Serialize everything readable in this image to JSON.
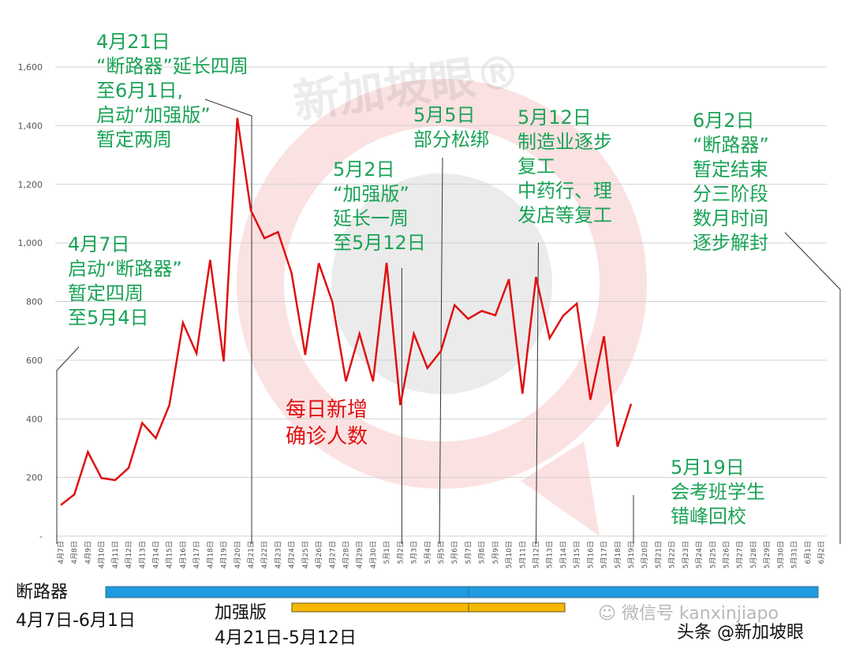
{
  "chart_data": {
    "type": "line",
    "title": "",
    "xlabel": "",
    "ylabel": "",
    "ylim": [
      0,
      1600
    ],
    "yticks": [
      0,
      200,
      400,
      600,
      800,
      1000,
      1200,
      1400,
      1600
    ],
    "ytick_labels": [
      "-",
      "200",
      "400",
      "600",
      "800",
      "1,000",
      "1,200",
      "1,400",
      "1,600"
    ],
    "grid": true,
    "categories": [
      "4月7日",
      "4月8日",
      "4月9日",
      "4月10日",
      "4月11日",
      "4月12日",
      "4月13日",
      "4月14日",
      "4月15日",
      "4月16日",
      "4月17日",
      "4月18日",
      "4月19日",
      "4月20日",
      "4月21日",
      "4月22日",
      "4月23日",
      "4月24日",
      "4月25日",
      "4月26日",
      "4月27日",
      "4月28日",
      "4月29日",
      "4月30日",
      "5月1日",
      "5月2日",
      "5月3日",
      "5月4日",
      "5月5日",
      "5月6日",
      "5月7日",
      "5月8日",
      "5月9日",
      "5月10日",
      "5月11日",
      "5月12日",
      "5月13日",
      "5月14日",
      "5月15日",
      "5月16日",
      "5月17日",
      "5月18日",
      "5月19日",
      "5月20日",
      "5月21日",
      "5月22日",
      "5月23日",
      "5月24日",
      "5月25日",
      "5月26日",
      "5月27日",
      "5月28日",
      "5月29日",
      "5月30日",
      "5月31日",
      "6月1日",
      "6月2日"
    ],
    "series": [
      {
        "name": "每日新增确诊人数",
        "color": "#e01010",
        "values": [
          106,
          142,
          287,
          198,
          191,
          233,
          386,
          334,
          447,
          728,
          623,
          942,
          596,
          1426,
          1111,
          1016,
          1037,
          897,
          618,
          931,
          799,
          528,
          690,
          528,
          932,
          447,
          690,
          573,
          632,
          788,
          741,
          768,
          753,
          876,
          486,
          884,
          675,
          752,
          793,
          465,
          682,
          305,
          451
        ]
      }
    ],
    "series_label": "每日新增\n确诊人数",
    "annotations": [
      {
        "date": "4月7日",
        "text": "4月7日\n启动“断路器”\n暂定四周\n至5月4日"
      },
      {
        "date": "4月21日",
        "text": "4月21日\n“断路器”延长四周\n至6月1日,\n启动“加强版”\n暂定两周"
      },
      {
        "date": "5月2日",
        "text": "5月2日\n“加强版”\n延长一周\n至5月12日"
      },
      {
        "date": "5月5日",
        "text": "5月5日\n部分松绑"
      },
      {
        "date": "5月12日",
        "text": "5月12日\n制造业逐步\n复工\n中药行、理\n发店等复工"
      },
      {
        "date": "5月19日",
        "text": "5月19日\n会考班学生\n错峰回校"
      },
      {
        "date": "6月2日",
        "text": "6月2日\n“断路器”\n暂定结束\n分三阶段\n数月时间\n逐步解封"
      }
    ],
    "legend_bars": [
      {
        "name": "断路器",
        "range": "4月7日-6月1日",
        "color": "#1e9be0"
      },
      {
        "name": "加强版",
        "range": "4月21日-5月12日",
        "color": "#f5b800"
      }
    ]
  },
  "labels": {
    "series_label": "每日新增\n确诊人数",
    "ann_0407": "4月7日\n启动“断路器”\n暂定四周\n至5月4日",
    "ann_0421": "4月21日\n“断路器”延长四周\n至6月1日,\n启动“加强版”\n暂定两周",
    "ann_0502": "5月2日\n“加强版”\n延长一周\n至5月12日",
    "ann_0505": "5月5日\n部分松绑",
    "ann_0512": "5月12日\n制造业逐步\n复工\n中药行、理\n发店等复工",
    "ann_0519": "5月19日\n会考班学生\n错峰回校",
    "ann_0602": "6月2日\n“断路器”\n暂定结束\n分三阶段\n数月时间\n逐步解封",
    "legend_cb_name": "断路器",
    "legend_cb_range": "4月7日-6月1日",
    "legend_plus_name": "加强版",
    "legend_plus_range": "4月21日-5月12日",
    "watermark_main": "新加坡眼®",
    "watermark_wechat": "微信号 kanxinjiapo",
    "credit": "头条 @新加坡眼"
  }
}
